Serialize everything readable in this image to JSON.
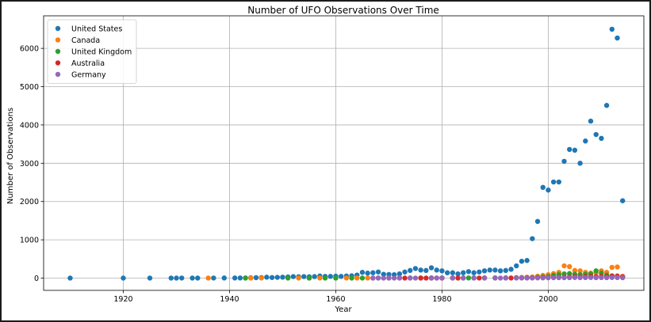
{
  "chart_data": {
    "type": "scatter",
    "title": "Number of UFO Observations Over Time",
    "xlabel": "Year",
    "ylabel": "Number of Observations",
    "xlim": [
      1905,
      2018
    ],
    "ylim": [
      -320,
      6850
    ],
    "xticks": [
      1920,
      1940,
      1960,
      1980,
      2000
    ],
    "yticks": [
      0,
      1000,
      2000,
      3000,
      4000,
      5000,
      6000
    ],
    "grid": true,
    "legend_position": "top-left",
    "series": [
      {
        "name": "United States",
        "color": "#1f77b4",
        "points": [
          [
            1910,
            1
          ],
          [
            1920,
            1
          ],
          [
            1925,
            1
          ],
          [
            1929,
            1
          ],
          [
            1930,
            1
          ],
          [
            1931,
            2
          ],
          [
            1933,
            1
          ],
          [
            1934,
            1
          ],
          [
            1937,
            2
          ],
          [
            1939,
            3
          ],
          [
            1941,
            3
          ],
          [
            1942,
            4
          ],
          [
            1943,
            5
          ],
          [
            1944,
            8
          ],
          [
            1945,
            12
          ],
          [
            1946,
            15
          ],
          [
            1947,
            25
          ],
          [
            1948,
            15
          ],
          [
            1949,
            20
          ],
          [
            1950,
            25
          ],
          [
            1951,
            30
          ],
          [
            1952,
            40
          ],
          [
            1953,
            35
          ],
          [
            1954,
            40
          ],
          [
            1955,
            35
          ],
          [
            1956,
            40
          ],
          [
            1957,
            55
          ],
          [
            1958,
            45
          ],
          [
            1959,
            45
          ],
          [
            1960,
            50
          ],
          [
            1961,
            45
          ],
          [
            1962,
            55
          ],
          [
            1963,
            60
          ],
          [
            1964,
            80
          ],
          [
            1965,
            150
          ],
          [
            1966,
            130
          ],
          [
            1967,
            140
          ],
          [
            1968,
            160
          ],
          [
            1969,
            100
          ],
          [
            1970,
            95
          ],
          [
            1971,
            90
          ],
          [
            1972,
            110
          ],
          [
            1973,
            160
          ],
          [
            1974,
            200
          ],
          [
            1975,
            250
          ],
          [
            1976,
            210
          ],
          [
            1977,
            200
          ],
          [
            1978,
            270
          ],
          [
            1979,
            210
          ],
          [
            1980,
            190
          ],
          [
            1981,
            140
          ],
          [
            1982,
            140
          ],
          [
            1983,
            110
          ],
          [
            1984,
            140
          ],
          [
            1985,
            170
          ],
          [
            1986,
            140
          ],
          [
            1987,
            160
          ],
          [
            1988,
            190
          ],
          [
            1989,
            210
          ],
          [
            1990,
            210
          ],
          [
            1991,
            190
          ],
          [
            1992,
            200
          ],
          [
            1993,
            230
          ],
          [
            1994,
            320
          ],
          [
            1995,
            440
          ],
          [
            1996,
            460
          ],
          [
            1997,
            1030
          ],
          [
            1998,
            1480
          ],
          [
            1999,
            2370
          ],
          [
            2000,
            2300
          ],
          [
            2001,
            2510
          ],
          [
            2002,
            2510
          ],
          [
            2003,
            3050
          ],
          [
            2004,
            3360
          ],
          [
            2005,
            3340
          ],
          [
            2006,
            3000
          ],
          [
            2007,
            3580
          ],
          [
            2008,
            4100
          ],
          [
            2009,
            3750
          ],
          [
            2010,
            3650
          ],
          [
            2011,
            4510
          ],
          [
            2012,
            6500
          ],
          [
            2013,
            6270
          ],
          [
            2014,
            2020
          ]
        ]
      },
      {
        "name": "Canada",
        "color": "#ff7f0e",
        "points": [
          [
            1936,
            1
          ],
          [
            1944,
            1
          ],
          [
            1946,
            2
          ],
          [
            1953,
            2
          ],
          [
            1955,
            1
          ],
          [
            1957,
            2
          ],
          [
            1962,
            2
          ],
          [
            1964,
            3
          ],
          [
            1966,
            3
          ],
          [
            1968,
            4
          ],
          [
            1970,
            3
          ],
          [
            1972,
            4
          ],
          [
            1974,
            4
          ],
          [
            1976,
            5
          ],
          [
            1978,
            6
          ],
          [
            1980,
            5
          ],
          [
            1982,
            5
          ],
          [
            1984,
            6
          ],
          [
            1986,
            6
          ],
          [
            1988,
            7
          ],
          [
            1990,
            8
          ],
          [
            1992,
            8
          ],
          [
            1994,
            15
          ],
          [
            1995,
            20
          ],
          [
            1996,
            25
          ],
          [
            1997,
            30
          ],
          [
            1998,
            50
          ],
          [
            1999,
            70
          ],
          [
            2000,
            90
          ],
          [
            2001,
            120
          ],
          [
            2002,
            150
          ],
          [
            2003,
            320
          ],
          [
            2004,
            300
          ],
          [
            2005,
            200
          ],
          [
            2006,
            190
          ],
          [
            2007,
            150
          ],
          [
            2008,
            130
          ],
          [
            2009,
            140
          ],
          [
            2010,
            190
          ],
          [
            2011,
            150
          ],
          [
            2012,
            280
          ],
          [
            2013,
            290
          ],
          [
            2014,
            50
          ]
        ]
      },
      {
        "name": "United Kingdom",
        "color": "#2ca02c",
        "points": [
          [
            1943,
            1
          ],
          [
            1951,
            1
          ],
          [
            1955,
            1
          ],
          [
            1958,
            1
          ],
          [
            1960,
            1
          ],
          [
            1963,
            1
          ],
          [
            1965,
            1
          ],
          [
            1968,
            2
          ],
          [
            1970,
            2
          ],
          [
            1972,
            2
          ],
          [
            1974,
            2
          ],
          [
            1976,
            2
          ],
          [
            1978,
            3
          ],
          [
            1980,
            3
          ],
          [
            1982,
            3
          ],
          [
            1984,
            3
          ],
          [
            1985,
            4
          ],
          [
            1986,
            4
          ],
          [
            1988,
            5
          ],
          [
            1990,
            5
          ],
          [
            1992,
            6
          ],
          [
            1994,
            8
          ],
          [
            1996,
            10
          ],
          [
            1998,
            20
          ],
          [
            1999,
            30
          ],
          [
            2000,
            40
          ],
          [
            2001,
            70
          ],
          [
            2002,
            90
          ],
          [
            2003,
            110
          ],
          [
            2004,
            120
          ],
          [
            2005,
            100
          ],
          [
            2006,
            90
          ],
          [
            2007,
            100
          ],
          [
            2008,
            110
          ],
          [
            2009,
            190
          ],
          [
            2010,
            130
          ],
          [
            2011,
            80
          ],
          [
            2012,
            60
          ],
          [
            2013,
            40
          ],
          [
            2014,
            20
          ]
        ]
      },
      {
        "name": "Australia",
        "color": "#d62728",
        "points": [
          [
            1967,
            1
          ],
          [
            1973,
            1
          ],
          [
            1976,
            1
          ],
          [
            1977,
            1
          ],
          [
            1978,
            1
          ],
          [
            1979,
            2
          ],
          [
            1980,
            1
          ],
          [
            1982,
            2
          ],
          [
            1983,
            1
          ],
          [
            1987,
            2
          ],
          [
            1988,
            2
          ],
          [
            1993,
            3
          ],
          [
            1995,
            5
          ],
          [
            1996,
            6
          ],
          [
            1997,
            8
          ],
          [
            1998,
            10
          ],
          [
            1999,
            12
          ],
          [
            2000,
            15
          ],
          [
            2001,
            18
          ],
          [
            2002,
            20
          ],
          [
            2003,
            25
          ],
          [
            2004,
            30
          ],
          [
            2005,
            35
          ],
          [
            2006,
            30
          ],
          [
            2007,
            40
          ],
          [
            2008,
            45
          ],
          [
            2009,
            40
          ],
          [
            2010,
            45
          ],
          [
            2011,
            40
          ],
          [
            2012,
            50
          ],
          [
            2013,
            55
          ],
          [
            2014,
            30
          ]
        ]
      },
      {
        "name": "Germany",
        "color": "#9467bd",
        "points": [
          [
            1967,
            1
          ],
          [
            1968,
            1
          ],
          [
            1969,
            1
          ],
          [
            1970,
            1
          ],
          [
            1971,
            1
          ],
          [
            1972,
            1
          ],
          [
            1974,
            1
          ],
          [
            1975,
            1
          ],
          [
            1978,
            1
          ],
          [
            1979,
            1
          ],
          [
            1980,
            1
          ],
          [
            1982,
            1
          ],
          [
            1984,
            1
          ],
          [
            1986,
            1
          ],
          [
            1988,
            1
          ],
          [
            1990,
            1
          ],
          [
            1991,
            1
          ],
          [
            1992,
            1
          ],
          [
            1994,
            2
          ],
          [
            1995,
            2
          ],
          [
            1996,
            3
          ],
          [
            1997,
            3
          ],
          [
            1998,
            5
          ],
          [
            1999,
            6
          ],
          [
            2000,
            8
          ],
          [
            2001,
            10
          ],
          [
            2002,
            12
          ],
          [
            2003,
            10
          ],
          [
            2004,
            12
          ],
          [
            2005,
            15
          ],
          [
            2006,
            12
          ],
          [
            2007,
            14
          ],
          [
            2008,
            15
          ],
          [
            2009,
            12
          ],
          [
            2010,
            14
          ],
          [
            2011,
            12
          ],
          [
            2012,
            15
          ],
          [
            2013,
            14
          ],
          [
            2014,
            10
          ]
        ]
      }
    ]
  }
}
